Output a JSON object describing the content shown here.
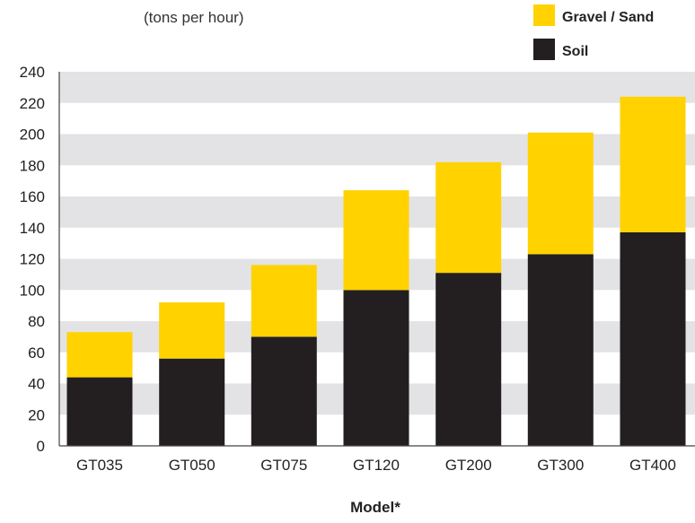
{
  "chart_data": {
    "type": "bar",
    "stacked": true,
    "title": "(tons per hour)",
    "xlabel": "Model*",
    "ylabel": "",
    "ylim": [
      0,
      240
    ],
    "yticks": [
      0,
      20,
      40,
      60,
      80,
      100,
      120,
      140,
      160,
      180,
      200,
      220,
      240
    ],
    "categories": [
      "GT035",
      "GT050",
      "GT075",
      "GT120",
      "GT200",
      "GT300",
      "GT400"
    ],
    "series": [
      {
        "name": "Soil",
        "color": "#231f20",
        "values": [
          44,
          56,
          70,
          100,
          111,
          123,
          137
        ]
      },
      {
        "name": "Gravel / Sand",
        "color": "#ffd200",
        "values": [
          29,
          36,
          46,
          64,
          71,
          78,
          87
        ]
      }
    ],
    "legend": {
      "placement": "top-right",
      "entries": [
        "Gravel / Sand",
        "Soil"
      ]
    },
    "grid": {
      "style": "alternating-bands",
      "band_color": "#e3e3e5"
    }
  }
}
